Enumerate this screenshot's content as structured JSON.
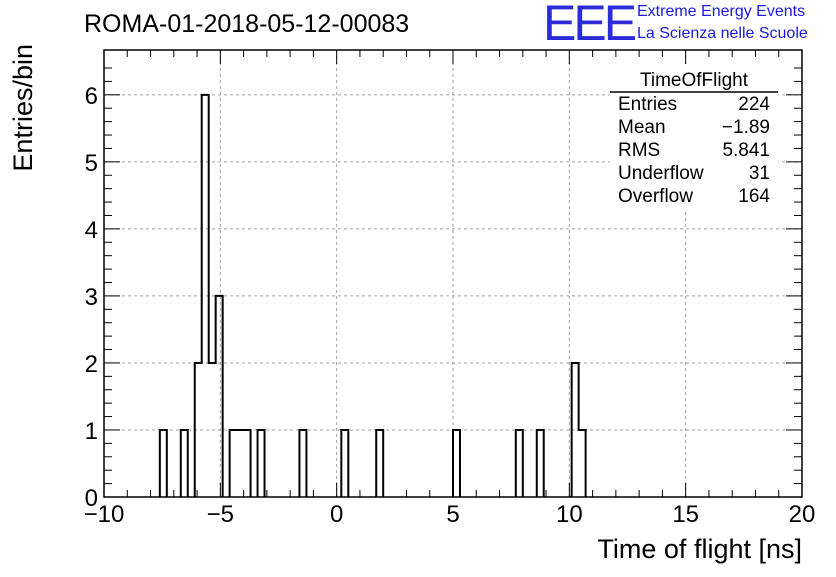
{
  "header": {
    "run_title": "ROMA-01-2018-05-12-00083",
    "logo_mark": "EEE",
    "logo_line1": "Extreme Energy Events",
    "logo_line2": "La Scienza nelle Scuole",
    "logo_color": "#1a1ae0"
  },
  "stats": {
    "title": "TimeOfFlight",
    "rows": [
      {
        "label": "Entries",
        "value": "224"
      },
      {
        "label": "Mean",
        "value": "−1.89"
      },
      {
        "label": "RMS",
        "value": "5.841"
      },
      {
        "label": "Underflow",
        "value": "31"
      },
      {
        "label": "Overflow",
        "value": "164"
      }
    ]
  },
  "chart_data": {
    "type": "bar",
    "title": "",
    "xlabel": "Time of flight [ns]",
    "ylabel": "Entries/bin",
    "xlim": [
      -10,
      20
    ],
    "ylim": [
      0,
      6.4
    ],
    "xticks": [
      -10,
      -5,
      0,
      5,
      10,
      15,
      20
    ],
    "xtick_labels": [
      "−10",
      "−5",
      "0",
      "5",
      "10",
      "15",
      "20"
    ],
    "yticks": [
      0,
      1,
      2,
      3,
      4,
      5,
      6
    ],
    "ytick_labels": [
      "0",
      "1",
      "2",
      "3",
      "4",
      "5",
      "6"
    ],
    "grid": true,
    "bin_width": 0.3,
    "bins": [
      {
        "x0": -7.6,
        "count": 1
      },
      {
        "x0": -6.7,
        "count": 1
      },
      {
        "x0": -6.1,
        "count": 2
      },
      {
        "x0": -5.8,
        "count": 6
      },
      {
        "x0": -5.5,
        "count": 2
      },
      {
        "x0": -5.2,
        "count": 3
      },
      {
        "x0": -4.6,
        "count": 1
      },
      {
        "x0": -4.3,
        "count": 1
      },
      {
        "x0": -4.0,
        "count": 1
      },
      {
        "x0": -3.4,
        "count": 1
      },
      {
        "x0": -1.6,
        "count": 1
      },
      {
        "x0": 0.2,
        "count": 1
      },
      {
        "x0": 1.7,
        "count": 1
      },
      {
        "x0": 5.0,
        "count": 1
      },
      {
        "x0": 7.7,
        "count": 1
      },
      {
        "x0": 8.6,
        "count": 1
      },
      {
        "x0": 10.1,
        "count": 2
      },
      {
        "x0": 10.4,
        "count": 1
      }
    ],
    "line_color": "#000000",
    "grid_color": "#a0a0a0"
  }
}
